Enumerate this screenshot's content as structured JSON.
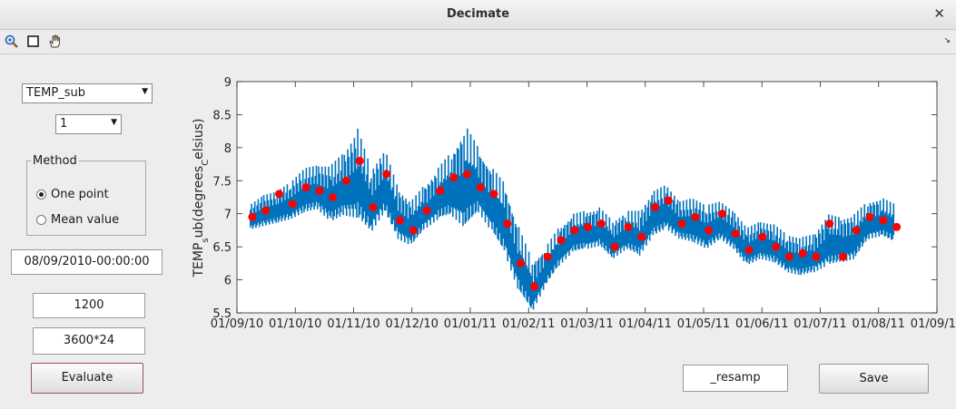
{
  "window": {
    "title": "Decimate"
  },
  "toolbar": {
    "zoom_icon": "zoom-in-icon",
    "select_icon": "square-select-icon",
    "pan_icon": "pan-hand-icon"
  },
  "controls": {
    "variable_select": "TEMP_sub",
    "index_select": "1",
    "method": {
      "legend": "Method",
      "options": [
        "One point",
        "Mean value"
      ],
      "selected": "One point"
    },
    "start_date": "08/09/2010-00:00:00",
    "window_value": "1200",
    "step_value": "3600*24",
    "evaluate_label": "Evaluate",
    "suffix_value": "_resamp",
    "save_label": "Save"
  },
  "chart_data": {
    "type": "line",
    "ylabel_main": "TEMP",
    "ylabel_sub1": "s",
    "ylabel_mid": "ub(degrees",
    "ylabel_sub2": "C",
    "ylabel_end": "elsius)",
    "xlim": [
      "2010-09-01",
      "2011-09-01"
    ],
    "ylim": [
      5.5,
      9
    ],
    "yticks": [
      "5.5",
      "6",
      "6.5",
      "7",
      "7.5",
      "8",
      "8.5",
      "9"
    ],
    "xticks": [
      "01/09/10",
      "01/10/10",
      "01/11/10",
      "01/12/10",
      "01/01/11",
      "01/02/11",
      "01/03/11",
      "01/04/11",
      "01/05/11",
      "01/06/11",
      "01/07/11",
      "01/08/11",
      "01/09/11"
    ],
    "colors": {
      "raw": "#0072bd",
      "decimated": "#ff0000"
    },
    "series": [
      {
        "kind": "raw",
        "x": [
          "2010-09-08",
          "2010-09-15",
          "2010-09-22",
          "2010-09-29",
          "2010-10-06",
          "2010-10-13",
          "2010-10-20",
          "2010-10-27",
          "2010-11-03",
          "2010-11-10",
          "2010-11-17",
          "2010-11-24",
          "2010-12-01",
          "2010-12-08",
          "2010-12-15",
          "2010-12-22",
          "2010-12-29",
          "2011-01-05",
          "2011-01-12",
          "2011-01-19",
          "2011-01-26",
          "2011-02-02",
          "2011-02-09",
          "2011-02-16",
          "2011-02-23",
          "2011-03-02",
          "2011-03-09",
          "2011-03-16",
          "2011-03-23",
          "2011-03-30",
          "2011-04-06",
          "2011-04-13",
          "2011-04-20",
          "2011-04-27",
          "2011-05-04",
          "2011-05-11",
          "2011-05-18",
          "2011-05-25",
          "2011-06-01",
          "2011-06-08",
          "2011-06-15",
          "2011-06-22",
          "2011-06-29",
          "2011-07-06",
          "2011-07-13",
          "2011-07-20",
          "2011-07-27",
          "2011-08-03",
          "2011-08-10"
        ],
        "y": [
          6.95,
          7.05,
          7.1,
          7.2,
          7.35,
          7.4,
          7.3,
          7.45,
          7.6,
          7.2,
          7.5,
          7.0,
          6.85,
          7.1,
          7.3,
          7.45,
          7.55,
          7.5,
          7.2,
          6.9,
          6.3,
          5.9,
          6.2,
          6.5,
          6.7,
          6.75,
          6.8,
          6.6,
          6.75,
          6.7,
          7.0,
          7.1,
          6.9,
          6.9,
          6.8,
          6.9,
          6.75,
          6.5,
          6.6,
          6.55,
          6.4,
          6.35,
          6.4,
          6.6,
          6.6,
          6.65,
          6.9,
          6.95,
          6.85
        ],
        "spread": [
          0.2,
          0.25,
          0.25,
          0.3,
          0.35,
          0.35,
          0.45,
          0.5,
          0.7,
          0.5,
          0.5,
          0.4,
          0.35,
          0.35,
          0.4,
          0.5,
          0.8,
          0.5,
          0.5,
          0.55,
          0.5,
          0.4,
          0.3,
          0.3,
          0.3,
          0.3,
          0.3,
          0.3,
          0.3,
          0.35,
          0.35,
          0.35,
          0.3,
          0.35,
          0.35,
          0.3,
          0.3,
          0.3,
          0.3,
          0.3,
          0.3,
          0.3,
          0.3,
          0.4,
          0.35,
          0.35,
          0.3,
          0.3,
          0.3
        ]
      },
      {
        "kind": "decimated",
        "x": [
          "2010-09-09",
          "2010-09-16",
          "2010-09-23",
          "2010-09-30",
          "2010-10-07",
          "2010-10-14",
          "2010-10-21",
          "2010-10-28",
          "2010-11-04",
          "2010-11-11",
          "2010-11-18",
          "2010-11-25",
          "2010-12-02",
          "2010-12-09",
          "2010-12-16",
          "2010-12-23",
          "2010-12-30",
          "2011-01-06",
          "2011-01-13",
          "2011-01-20",
          "2011-01-27",
          "2011-02-03",
          "2011-02-10",
          "2011-02-17",
          "2011-02-24",
          "2011-03-03",
          "2011-03-10",
          "2011-03-17",
          "2011-03-24",
          "2011-03-31",
          "2011-04-07",
          "2011-04-14",
          "2011-04-21",
          "2011-04-28",
          "2011-05-05",
          "2011-05-12",
          "2011-05-19",
          "2011-05-26",
          "2011-06-02",
          "2011-06-09",
          "2011-06-16",
          "2011-06-23",
          "2011-06-30",
          "2011-07-07",
          "2011-07-14",
          "2011-07-21",
          "2011-07-28",
          "2011-08-04",
          "2011-08-11"
        ],
        "y": [
          6.95,
          7.05,
          7.3,
          7.15,
          7.4,
          7.35,
          7.25,
          7.5,
          7.8,
          7.1,
          7.6,
          6.9,
          6.75,
          7.05,
          7.35,
          7.55,
          7.6,
          7.4,
          7.3,
          6.85,
          6.25,
          5.9,
          6.35,
          6.6,
          6.75,
          6.8,
          6.85,
          6.5,
          6.8,
          6.65,
          7.1,
          7.2,
          6.85,
          6.95,
          6.75,
          7.0,
          6.7,
          6.45,
          6.65,
          6.5,
          6.35,
          6.4,
          6.35,
          6.85,
          6.35,
          6.75,
          6.95,
          6.9,
          6.8
        ]
      }
    ]
  }
}
